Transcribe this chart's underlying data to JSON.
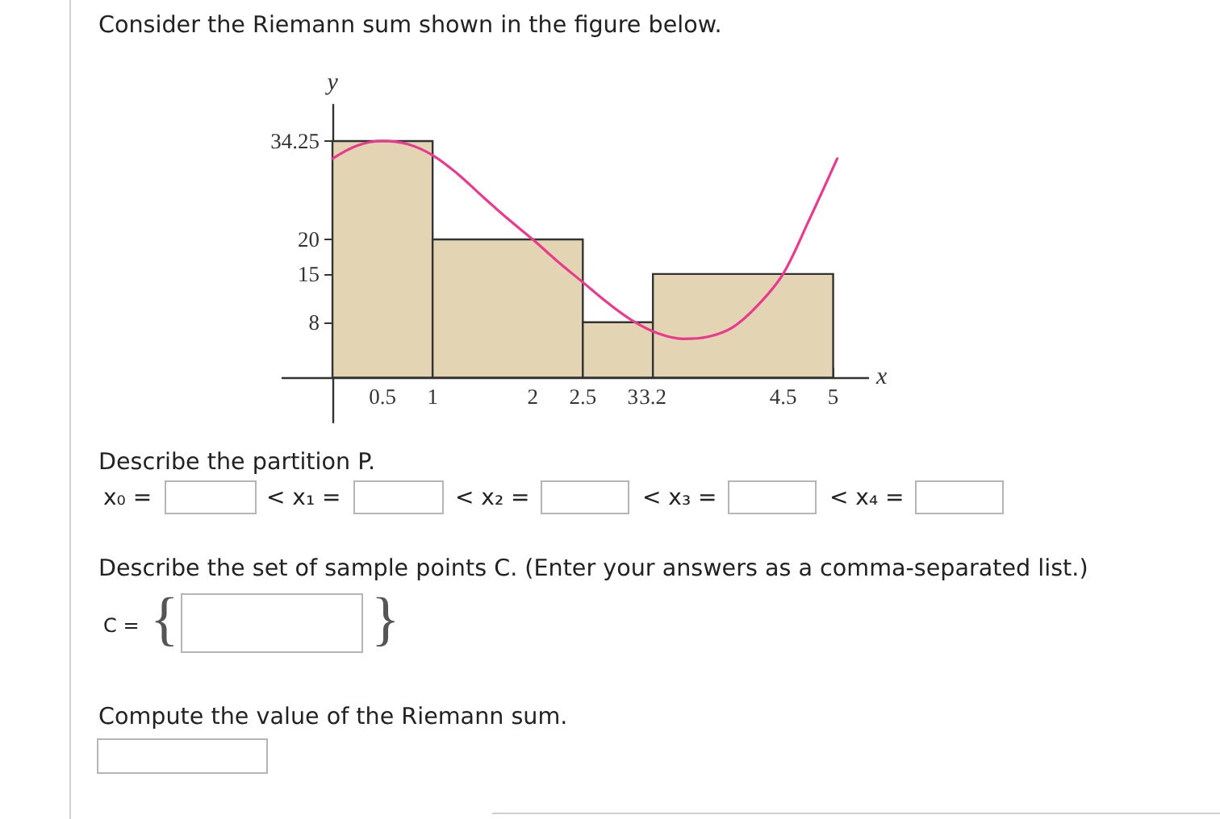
{
  "chart_data": {
    "type": "histogram",
    "title": "Consider the Riemann sum shown in the figure below.",
    "xlabel": "x",
    "ylabel": "y",
    "series": [
      {
        "type": "histogram",
        "bins": [
          0,
          1,
          2.5,
          3.2,
          5
        ],
        "values": [
          34.25,
          20,
          8,
          15
        ],
        "color": "#e3d5b4"
      },
      {
        "type": "line",
        "color": "#ea3a8e",
        "x": [
          0,
          0.25,
          0.5,
          0.75,
          1,
          1.25,
          1.5,
          1.75,
          2,
          2.25,
          2.5,
          2.75,
          3,
          3.25,
          3.5,
          3.75,
          4,
          4.25,
          4.5,
          4.75,
          5.04
        ],
        "values": [
          31.7,
          33.6,
          34.25,
          33.8,
          32.2,
          29.5,
          26.2,
          23,
          20,
          16.8,
          13.8,
          10.8,
          8.2,
          6.4,
          5.6,
          5.9,
          7.3,
          10.5,
          15,
          22.5,
          31.7
        ]
      }
    ],
    "xlim": [
      -0.5,
      5.35
    ],
    "ylim": [
      -6.5,
      39.5
    ],
    "xticks": [
      0.5,
      1,
      2,
      2.5,
      3,
      3.2,
      4.5,
      5
    ],
    "yticks": [
      8,
      15,
      20,
      34.25
    ],
    "annotations": [
      "Describe the partition P.",
      "x₀ =",
      "< x₁ =",
      "< x₂ =",
      "< x₃ =",
      "< x₄ =",
      "Describe the set of sample points C. (Enter your answers as a comma-separated list.)",
      "C =",
      "{",
      "}",
      "Compute the value of the Riemann sum."
    ]
  }
}
